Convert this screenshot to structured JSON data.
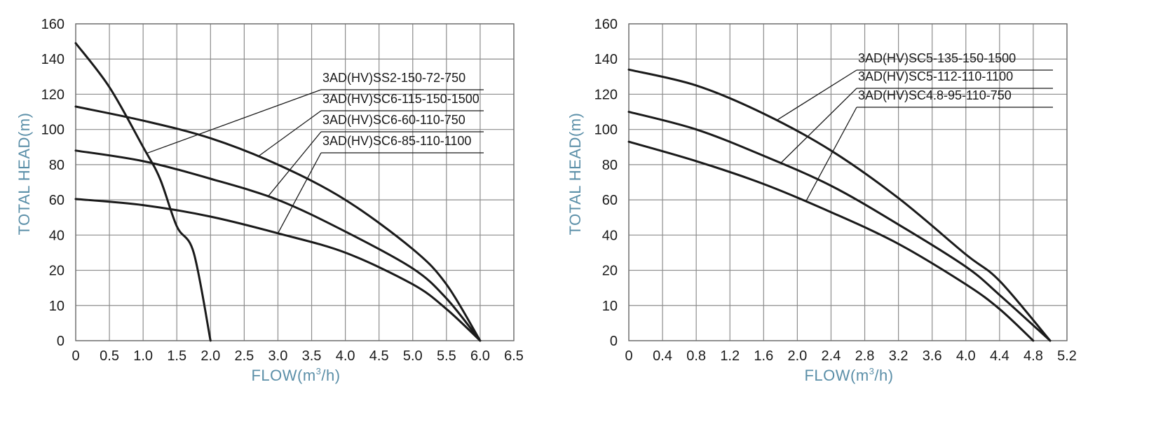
{
  "chart_data": [
    {
      "type": "line",
      "title": "",
      "xlabel_parts": [
        "FLOW(m",
        "3",
        "/h)"
      ],
      "ylabel": "TOTAL HEAD(m)",
      "x_ticks": [
        "0",
        "0.5",
        "1.0",
        "1.5",
        "2.0",
        "2.5",
        "3.0",
        "3.5",
        "4.0",
        "4.5",
        "5.0",
        "5.5",
        "6.0",
        "6.5"
      ],
      "y_ticks": [
        "0",
        "10",
        "20",
        "40",
        "60",
        "80",
        "100",
        "120",
        "140",
        "160"
      ],
      "y_tick_values": [
        0,
        10,
        20,
        40,
        60,
        80,
        100,
        120,
        140,
        160
      ],
      "xlim": [
        0,
        6.5
      ],
      "grid": true,
      "series": [
        {
          "name": "3AD(HV)SS2-150-72-750",
          "x": [
            0,
            0.5,
            1.0,
            1.25,
            1.5,
            1.75,
            2.0
          ],
          "y": [
            149,
            124,
            90,
            72,
            45,
            30,
            0
          ]
        },
        {
          "name": "3AD(HV)SC6-115-150-1500",
          "x": [
            0,
            1,
            2,
            3,
            4,
            5,
            5.5,
            6.0
          ],
          "y": [
            113,
            105,
            95,
            80,
            60,
            32,
            16,
            0
          ]
        },
        {
          "name": "3AD(HV)SC6-60-110-750",
          "x": [
            0,
            1,
            2,
            3,
            4,
            5,
            5.5,
            6.0
          ],
          "y": [
            88,
            82,
            72,
            60,
            42,
            21,
            12,
            0
          ]
        },
        {
          "name": "3AD(HV)SC6-85-110-1100",
          "x": [
            0,
            1,
            2,
            3,
            4,
            5,
            5.5,
            6.0
          ],
          "y": [
            60.5,
            57,
            50.5,
            41,
            30,
            16,
            9,
            0
          ]
        }
      ]
    },
    {
      "type": "line",
      "title": "",
      "xlabel_parts": [
        "FLOW(m",
        "3",
        "/h)"
      ],
      "ylabel": "TOTAL HEAD(m)",
      "x_ticks": [
        "0",
        "0.4",
        "0.8",
        "1.2",
        "1.6",
        "2.0",
        "2.4",
        "2.8",
        "3.2",
        "3.6",
        "4.0",
        "4.4",
        "4.8",
        "5.2"
      ],
      "y_ticks": [
        "0",
        "10",
        "20",
        "40",
        "60",
        "80",
        "100",
        "120",
        "140",
        "160"
      ],
      "y_tick_values": [
        0,
        10,
        20,
        40,
        60,
        80,
        100,
        120,
        140,
        160
      ],
      "xlim": [
        0,
        5.2
      ],
      "grid": true,
      "series": [
        {
          "name": "3AD(HV)SC5-135-150-1500",
          "x": [
            0,
            0.8,
            1.6,
            2.4,
            3.2,
            4.0,
            4.4,
            5.0
          ],
          "y": [
            134,
            125,
            109,
            88,
            61,
            29,
            17,
            0
          ]
        },
        {
          "name": "3AD(HV)SC5-112-110-1100",
          "x": [
            0,
            0.8,
            1.6,
            2.4,
            3.2,
            4.0,
            4.4,
            5.0
          ],
          "y": [
            110,
            100,
            85,
            68,
            46,
            22,
            13,
            0
          ]
        },
        {
          "name": "3AD(HV)SC4.8-95-110-750",
          "x": [
            0,
            0.8,
            1.6,
            2.4,
            3.2,
            4.0,
            4.4,
            4.8
          ],
          "y": [
            93,
            82,
            69,
            53,
            35,
            16,
            9,
            0
          ]
        }
      ]
    }
  ]
}
